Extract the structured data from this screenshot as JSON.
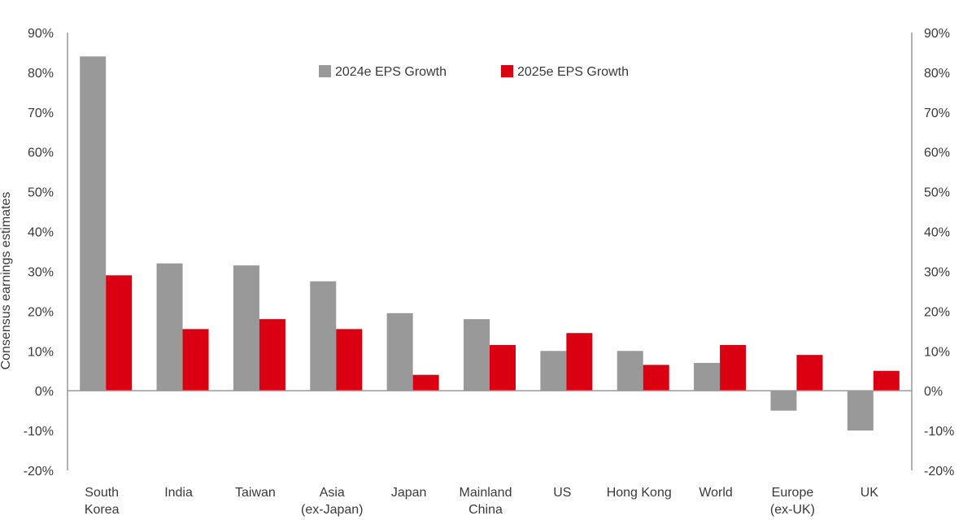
{
  "chart_data": {
    "type": "bar",
    "title": "",
    "xlabel": "",
    "ylabel": "Consensus earnings estimates",
    "ylim": [
      -20,
      90
    ],
    "ytick_step": 10,
    "ytick_labels": [
      "-20%",
      "-10%",
      "0%",
      "10%",
      "20%",
      "30%",
      "40%",
      "50%",
      "60%",
      "70%",
      "80%",
      "90%"
    ],
    "secondary_axis_mirrors_primary": true,
    "grid": false,
    "legend_position": "top-center",
    "categories": [
      [
        "South",
        "Korea"
      ],
      [
        "India"
      ],
      [
        "Taiwan"
      ],
      [
        "Asia",
        "(ex-Japan)"
      ],
      [
        "Japan"
      ],
      [
        "Mainland",
        "China"
      ],
      [
        "US"
      ],
      [
        "Hong Kong"
      ],
      [
        "World"
      ],
      [
        "Europe",
        "(ex-UK)"
      ],
      [
        "UK"
      ]
    ],
    "series": [
      {
        "name": "2024e EPS Growth",
        "color": "#999999",
        "values": [
          84,
          32,
          31.5,
          27.5,
          19.5,
          18,
          10,
          10,
          7,
          -5,
          -10
        ]
      },
      {
        "name": "2025e EPS Growth",
        "color": "#db0011",
        "values": [
          29,
          15.5,
          18,
          15.5,
          4,
          11.5,
          14.5,
          6.5,
          11.5,
          9,
          5
        ]
      }
    ]
  }
}
